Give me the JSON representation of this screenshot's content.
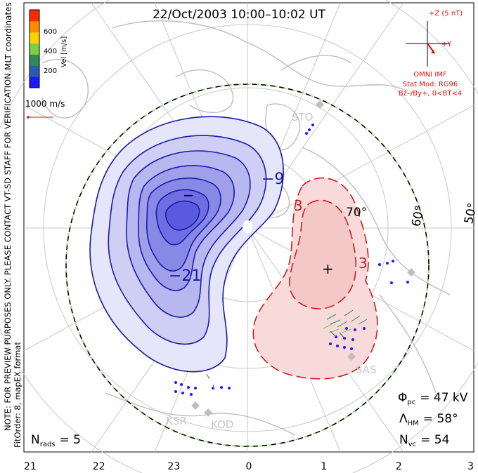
{
  "title": "22/Oct/2003 10:00–10:02 UT",
  "colorbar": {
    "label": "Vel [m/s]",
    "ticks": [
      "600",
      "400",
      "200"
    ],
    "colors": [
      "#ff2a00",
      "#ff8c00",
      "#ffd000",
      "#7dd040",
      "#2e8b57",
      "#2a5db0",
      "#1a1aff"
    ]
  },
  "coords_label": "MLT coordinates",
  "scale_label": "1000 m/s",
  "imf": {
    "bz_label": "+Z (5 nT)",
    "by_label": "+Y",
    "source": "OMNI IMF",
    "model": "Stat Mod: RG96",
    "condition": "Bz–/By+, 0<BT<4"
  },
  "side_notes": {
    "preview": "NOTE: FOR PREVIEW PURPOSES ONLY. PLEASE CONTACT VT-SD STAFF FOR VERIFICATION.",
    "format": "FitOrder: 8, mapEX format"
  },
  "stats": {
    "phi_symbol": "Φ",
    "phi_sub": "pc",
    "phi_value": "= 47 kV",
    "lambda_symbol": "Λ",
    "lambda_sub": "HM",
    "lambda_value": "= 58°",
    "nvc_symbol": "N",
    "nvc_sub": "vc",
    "nvc_value": "= 54",
    "nrads_symbol": "N",
    "nrads_sub": "rads",
    "nrads_value": "= 5"
  },
  "mlt_axis": [
    "21",
    "22",
    "23",
    "0",
    "1",
    "2",
    "3"
  ],
  "lat_labels": [
    "70°",
    "60°",
    "50°"
  ],
  "contours": {
    "negative_label": "−21",
    "negative_label2": "−9",
    "positive_label": "3",
    "positive_label2": "3",
    "min_marker": "−",
    "max_marker": "+"
  },
  "stations": [
    "STO",
    "SAS",
    "KSR",
    "KOD"
  ],
  "colors": {
    "negative_line": "#1a1aaa",
    "negative_fill": "#5a5ae0",
    "positive_line": "#c81e1e",
    "positive_fill": "#f5c8c8",
    "imf_red": "#e01010",
    "grid": "#c8c8c8",
    "land": "#bdbdbd"
  }
}
